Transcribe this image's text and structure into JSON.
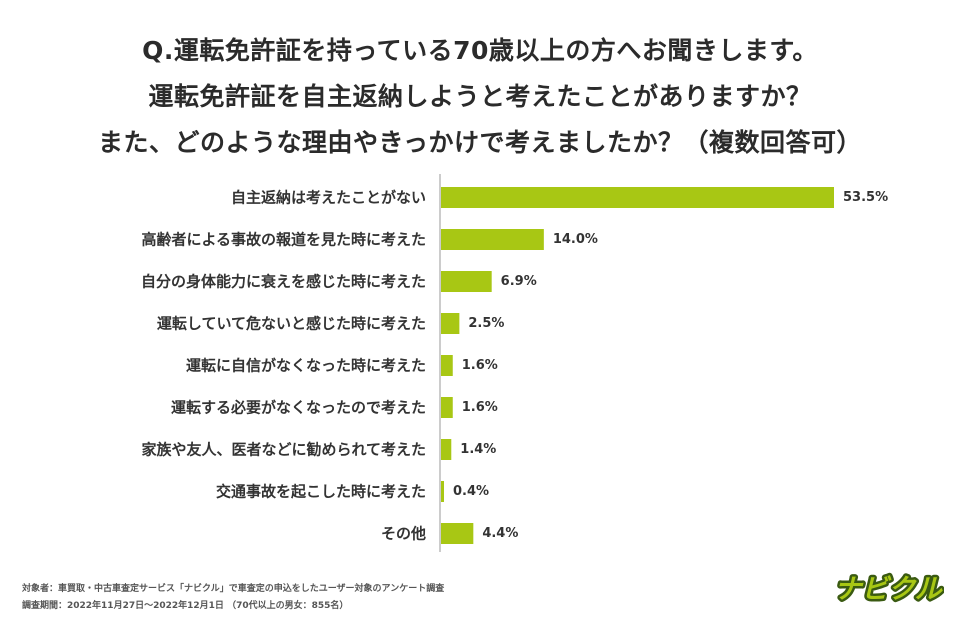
{
  "title": {
    "line1": "Q.運転免許証を持っている70歳以上の方へお聞きします。",
    "line2": "運転免許証を自主返納しようと考えたことがありますか？",
    "line3": "また、どのような理由やきっかけで考えましたか？（複数回答可）"
  },
  "chart_data": {
    "type": "bar",
    "orientation": "horizontal",
    "categories": [
      "自主返納は考えたことがない",
      "高齢者による事故の報道を見た時に考えた",
      "自分の身体能力に衰えを感じた時に考えた",
      "運転していて危ないと感じた時に考えた",
      "運転に自信がなくなった時に考えた",
      "運転する必要がなくなったので考えた",
      "家族や友人、医者などに勧められて考えた",
      "交通事故を起こした時に考えた",
      "その他"
    ],
    "values": [
      53.5,
      14.0,
      6.9,
      2.5,
      1.6,
      1.6,
      1.4,
      0.4,
      4.4
    ],
    "value_labels": [
      "53.5%",
      "14.0%",
      "6.9%",
      "2.5%",
      "1.6%",
      "1.6%",
      "1.4%",
      "0.4%",
      "4.4%"
    ],
    "unit": "%",
    "xlim": [
      0,
      60
    ],
    "bar_color": "#a8c714",
    "axis_color": "#999999",
    "grid": false,
    "legend": "none"
  },
  "footer": {
    "line1": "対象者：車買取・中古車査定サービス「ナビクル」で車査定の申込をしたユーザー対象のアンケート調査",
    "line2": "調査期間：2022年11月27日〜2022年12月1日 （70代以上の男女：855名）"
  },
  "logo": {
    "text": "ナビクル",
    "fill_color": "#a8c714",
    "outline_color": "#3a5a12"
  }
}
